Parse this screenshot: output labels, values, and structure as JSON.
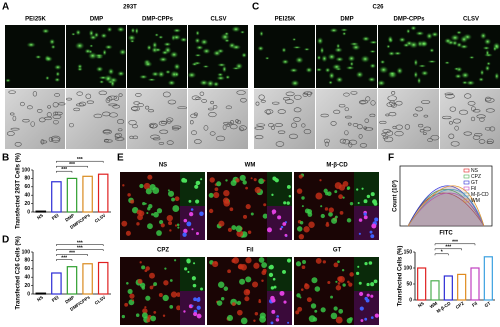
{
  "panels": {
    "A": {
      "letter": "A",
      "cell_line": "293T",
      "columns": [
        "PEI25K",
        "DMP",
        "DMP-CPPs",
        "CLSV"
      ]
    },
    "C": {
      "letter": "C",
      "cell_line": "C26",
      "columns": [
        "PEI25K",
        "DMP",
        "DMP-CPPs",
        "CLSV"
      ]
    },
    "B": {
      "letter": "B"
    },
    "D": {
      "letter": "D"
    },
    "E": {
      "letter": "E",
      "columns": [
        "NS",
        "WM",
        "M-β-CD",
        "CPZ",
        "Fil",
        "GT"
      ]
    },
    "F": {
      "letter": "F",
      "hist_ylabel": "Count (10³)",
      "hist_xlabel": "FITC",
      "hist_legend": [
        "NS",
        "CPZ",
        "GT",
        "Fil",
        "M-β-CD",
        "WM"
      ]
    }
  },
  "chart_data": [
    {
      "type": "bar",
      "title": "Transfected 293T Cells (%)",
      "categories": [
        "NS",
        "PEI",
        "DMP",
        "DMP/CPPs",
        "CLSV"
      ],
      "values": [
        2,
        72,
        80,
        85,
        90
      ],
      "colors": [
        "#000000",
        "#2b2bd6",
        "#2e9e2e",
        "#d98a1e",
        "#e02020"
      ],
      "ylim": [
        0,
        100
      ],
      "yticks": [
        0,
        20,
        40,
        60,
        80,
        100
      ],
      "annotations": [
        "***",
        "***",
        "***"
      ]
    },
    {
      "type": "bar",
      "title": "Transfected C26 Cells (%)",
      "categories": [
        "NS",
        "PEI",
        "DMP",
        "DMP/CPPs",
        "CLSV"
      ],
      "values": [
        2,
        50,
        65,
        72,
        75
      ],
      "colors": [
        "#000000",
        "#2b2bd6",
        "#2e9e2e",
        "#d98a1e",
        "#e02020"
      ],
      "ylim": [
        0,
        100
      ],
      "yticks": [
        0,
        20,
        40,
        60,
        80,
        100
      ],
      "annotations": [
        "***",
        "***",
        "***",
        "***"
      ]
    },
    {
      "type": "bar",
      "title": "Transfected Cells (%)",
      "categories": [
        "NS",
        "WM",
        "M-β-CD",
        "CPZ",
        "Fil",
        "GT"
      ],
      "values": [
        100,
        60,
        75,
        80,
        100,
        135
      ],
      "colors": [
        "#e02020",
        "#4caf50",
        "#2b2bd6",
        "#e08a1e",
        "#c040c0",
        "#3aa0e0"
      ],
      "ylim": [
        0,
        150
      ],
      "yticks": [
        0,
        50,
        100,
        150
      ],
      "annotations": [
        "*",
        "***",
        "***"
      ]
    }
  ]
}
